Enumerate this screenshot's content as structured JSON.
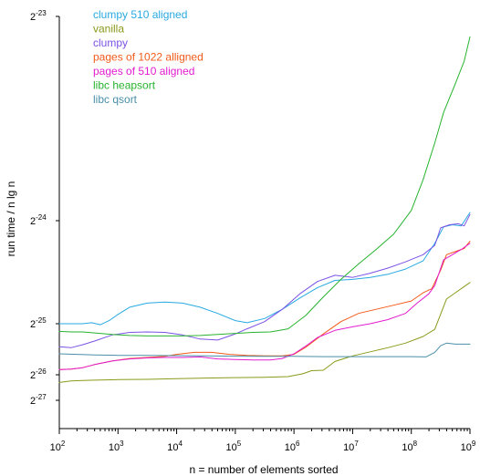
{
  "chart_data": {
    "type": "line",
    "title": "",
    "xlabel": "n = number of elements sorted",
    "ylabel": "run time / n lg n",
    "x_scale": "log10",
    "y_scale": "log2",
    "xlim": [
      100,
      1000000000
    ],
    "ylim": [
      5.75e-06,
      1.192e-07
    ],
    "x_ticks": [
      {
        "value": 100,
        "base": "10",
        "exp": "2"
      },
      {
        "value": 1000,
        "base": "10",
        "exp": "3"
      },
      {
        "value": 10000,
        "base": "10",
        "exp": "4"
      },
      {
        "value": 100000,
        "base": "10",
        "exp": "5"
      },
      {
        "value": 1000000,
        "base": "10",
        "exp": "6"
      },
      {
        "value": 10000000,
        "base": "10",
        "exp": "7"
      },
      {
        "value": 100000000,
        "base": "10",
        "exp": "8"
      },
      {
        "value": 1000000000,
        "base": "10",
        "exp": "9"
      }
    ],
    "y_ticks": [
      {
        "log2": -23,
        "base": "2",
        "exp": "-23"
      },
      {
        "log2": -24,
        "base": "2",
        "exp": "-24"
      },
      {
        "log2": -25,
        "base": "2",
        "exp": "-25"
      },
      {
        "log2": -26,
        "base": "2",
        "exp": "-26"
      },
      {
        "log2": -27,
        "base": "2",
        "exp": "-27"
      }
    ],
    "y_tick_positions_note": "",
    "legend_position": "top-left",
    "grid": false,
    "series": [
      {
        "name": "clumpy 510 aligned",
        "color": "#29a9e1",
        "points": [
          [
            2.0,
            -25.0
          ],
          [
            2.2,
            -25.0
          ],
          [
            2.4,
            -25.0
          ],
          [
            2.55,
            -24.99
          ],
          [
            2.7,
            -25.02
          ],
          [
            2.85,
            -24.97
          ],
          [
            3.0,
            -24.91
          ],
          [
            3.2,
            -24.84
          ],
          [
            3.5,
            -24.8
          ],
          [
            3.8,
            -24.79
          ],
          [
            4.1,
            -24.8
          ],
          [
            4.4,
            -24.84
          ],
          [
            4.7,
            -24.9
          ],
          [
            5.0,
            -24.97
          ],
          [
            5.2,
            -24.99
          ],
          [
            5.5,
            -24.95
          ],
          [
            5.8,
            -24.86
          ],
          [
            6.1,
            -24.75
          ],
          [
            6.4,
            -24.65
          ],
          [
            6.7,
            -24.58
          ],
          [
            7.0,
            -24.57
          ],
          [
            7.3,
            -24.55
          ],
          [
            7.6,
            -24.52
          ],
          [
            7.9,
            -24.47
          ],
          [
            8.2,
            -24.39
          ],
          [
            8.4,
            -24.22
          ],
          [
            8.55,
            -24.06
          ],
          [
            8.7,
            -24.04
          ],
          [
            8.85,
            -24.05
          ],
          [
            9.0,
            -23.96
          ]
        ]
      },
      {
        "name": "vanilla",
        "color": "#8a9a1a",
        "points": [
          [
            2.0,
            -26.3
          ],
          [
            2.2,
            -26.24
          ],
          [
            2.4,
            -26.22
          ],
          [
            2.6,
            -26.21
          ],
          [
            3.0,
            -26.19
          ],
          [
            3.5,
            -26.18
          ],
          [
            4.0,
            -26.15
          ],
          [
            4.5,
            -26.13
          ],
          [
            5.0,
            -26.11
          ],
          [
            5.5,
            -26.1
          ],
          [
            5.9,
            -26.07
          ],
          [
            6.15,
            -25.98
          ],
          [
            6.3,
            -25.92
          ],
          [
            6.5,
            -25.91
          ],
          [
            6.7,
            -25.74
          ],
          [
            7.0,
            -25.63
          ],
          [
            7.3,
            -25.55
          ],
          [
            7.6,
            -25.47
          ],
          [
            7.9,
            -25.38
          ],
          [
            8.2,
            -25.25
          ],
          [
            8.4,
            -25.11
          ],
          [
            8.6,
            -24.76
          ],
          [
            8.75,
            -24.7
          ],
          [
            8.9,
            -24.64
          ],
          [
            9.0,
            -24.6
          ]
        ]
      },
      {
        "name": "clumpy",
        "color": "#7b52e6",
        "points": [
          [
            2.0,
            -25.45
          ],
          [
            2.2,
            -25.47
          ],
          [
            2.4,
            -25.41
          ],
          [
            2.6,
            -25.34
          ],
          [
            2.9,
            -25.22
          ],
          [
            3.2,
            -25.17
          ],
          [
            3.5,
            -25.16
          ],
          [
            3.8,
            -25.17
          ],
          [
            4.1,
            -25.22
          ],
          [
            4.4,
            -25.3
          ],
          [
            4.7,
            -25.32
          ],
          [
            5.0,
            -25.2
          ],
          [
            5.2,
            -25.1
          ],
          [
            5.5,
            -24.98
          ],
          [
            5.8,
            -24.86
          ],
          [
            6.1,
            -24.71
          ],
          [
            6.4,
            -24.59
          ],
          [
            6.7,
            -24.53
          ],
          [
            7.0,
            -24.55
          ],
          [
            7.3,
            -24.51
          ],
          [
            7.6,
            -24.46
          ],
          [
            7.9,
            -24.4
          ],
          [
            8.2,
            -24.33
          ],
          [
            8.4,
            -24.24
          ],
          [
            8.5,
            -24.07
          ],
          [
            8.65,
            -24.04
          ],
          [
            8.8,
            -24.03
          ],
          [
            8.9,
            -24.05
          ],
          [
            9.0,
            -23.97
          ]
        ]
      },
      {
        "name": "pages of 1022 alligned",
        "color": "#f25a1a",
        "points": [
          [
            2.0,
            -25.9
          ],
          [
            2.2,
            -25.89
          ],
          [
            2.4,
            -25.86
          ],
          [
            2.6,
            -25.8
          ],
          [
            2.9,
            -25.73
          ],
          [
            3.2,
            -25.68
          ],
          [
            3.5,
            -25.66
          ],
          [
            3.8,
            -25.64
          ],
          [
            4.0,
            -25.6
          ],
          [
            4.3,
            -25.56
          ],
          [
            4.6,
            -25.56
          ],
          [
            4.9,
            -25.6
          ],
          [
            5.2,
            -25.62
          ],
          [
            5.5,
            -25.63
          ],
          [
            5.8,
            -25.63
          ],
          [
            6.0,
            -25.6
          ],
          [
            6.2,
            -25.46
          ],
          [
            6.5,
            -25.2
          ],
          [
            6.8,
            -24.98
          ],
          [
            7.1,
            -24.9
          ],
          [
            7.4,
            -24.86
          ],
          [
            7.7,
            -24.82
          ],
          [
            8.0,
            -24.78
          ],
          [
            8.2,
            -24.7
          ],
          [
            8.35,
            -24.66
          ],
          [
            8.5,
            -24.48
          ],
          [
            8.6,
            -24.33
          ],
          [
            8.75,
            -24.3
          ],
          [
            8.9,
            -24.27
          ],
          [
            9.0,
            -24.2
          ]
        ]
      },
      {
        "name": "pages of 510 aligned",
        "color": "#e21ccf",
        "points": [
          [
            2.0,
            -25.9
          ],
          [
            2.2,
            -25.89
          ],
          [
            2.4,
            -25.86
          ],
          [
            2.6,
            -25.8
          ],
          [
            2.9,
            -25.73
          ],
          [
            3.2,
            -25.69
          ],
          [
            3.5,
            -25.67
          ],
          [
            3.8,
            -25.66
          ],
          [
            4.1,
            -25.66
          ],
          [
            4.4,
            -25.65
          ],
          [
            4.7,
            -25.69
          ],
          [
            5.0,
            -25.7
          ],
          [
            5.3,
            -25.71
          ],
          [
            5.6,
            -25.71
          ],
          [
            5.8,
            -25.68
          ],
          [
            6.0,
            -25.59
          ],
          [
            6.2,
            -25.44
          ],
          [
            6.4,
            -25.27
          ],
          [
            6.7,
            -25.13
          ],
          [
            7.0,
            -25.06
          ],
          [
            7.3,
            -25.0
          ],
          [
            7.6,
            -24.96
          ],
          [
            7.9,
            -24.9
          ],
          [
            8.1,
            -24.8
          ],
          [
            8.3,
            -24.71
          ],
          [
            8.4,
            -24.63
          ],
          [
            8.55,
            -24.38
          ],
          [
            8.7,
            -24.33
          ],
          [
            8.85,
            -24.28
          ],
          [
            9.0,
            -24.22
          ]
        ]
      },
      {
        "name": "libc heapsort",
        "color": "#27b32e",
        "points": [
          [
            2.0,
            -25.15
          ],
          [
            2.2,
            -25.16
          ],
          [
            2.4,
            -25.16
          ],
          [
            2.6,
            -25.18
          ],
          [
            2.9,
            -25.21
          ],
          [
            3.2,
            -25.23
          ],
          [
            3.5,
            -25.24
          ],
          [
            3.8,
            -25.24
          ],
          [
            4.1,
            -25.24
          ],
          [
            4.4,
            -25.23
          ],
          [
            4.7,
            -25.21
          ],
          [
            5.0,
            -25.19
          ],
          [
            5.3,
            -25.17
          ],
          [
            5.6,
            -25.16
          ],
          [
            5.9,
            -25.1
          ],
          [
            6.2,
            -24.92
          ],
          [
            6.5,
            -24.74
          ],
          [
            6.8,
            -24.57
          ],
          [
            7.1,
            -24.42
          ],
          [
            7.4,
            -24.28
          ],
          [
            7.7,
            -24.13
          ],
          [
            8.0,
            -23.95
          ],
          [
            8.2,
            -23.8
          ],
          [
            8.4,
            -23.62
          ],
          [
            8.55,
            -23.47
          ],
          [
            8.75,
            -23.33
          ],
          [
            8.9,
            -23.22
          ],
          [
            9.0,
            -23.1
          ]
        ]
      },
      {
        "name": "libc qsort",
        "color": "#4a8fa8",
        "points": [
          [
            2.0,
            -25.59
          ],
          [
            2.3,
            -25.6
          ],
          [
            2.6,
            -25.61
          ],
          [
            3.0,
            -25.62
          ],
          [
            3.5,
            -25.62
          ],
          [
            4.0,
            -25.625
          ],
          [
            4.5,
            -25.63
          ],
          [
            5.0,
            -25.635
          ],
          [
            5.5,
            -25.64
          ],
          [
            6.0,
            -25.64
          ],
          [
            6.5,
            -25.645
          ],
          [
            7.0,
            -25.645
          ],
          [
            7.5,
            -25.645
          ],
          [
            8.0,
            -25.645
          ],
          [
            8.25,
            -25.65
          ],
          [
            8.4,
            -25.56
          ],
          [
            8.5,
            -25.43
          ],
          [
            8.6,
            -25.38
          ],
          [
            8.75,
            -25.4
          ],
          [
            9.0,
            -25.4
          ]
        ]
      }
    ]
  }
}
